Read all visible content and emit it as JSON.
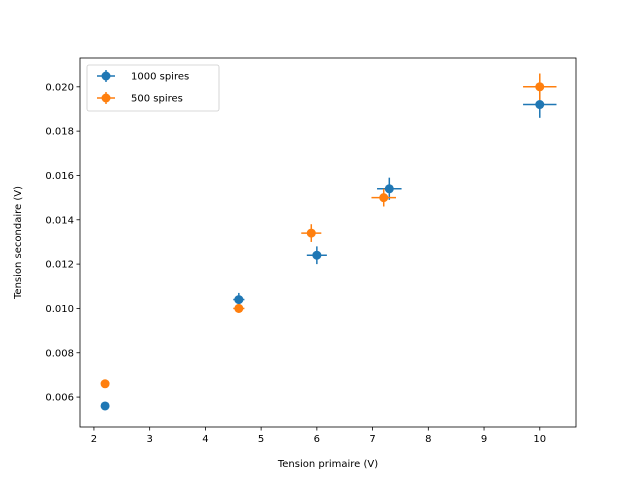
{
  "chart_data": {
    "type": "scatter",
    "title": "",
    "xlabel": "Tension primaire (V)",
    "ylabel": "Tension secondaire (V)",
    "xlim": [
      1.75,
      10.65
    ],
    "ylim": [
      0.00465,
      0.0213
    ],
    "xticks": [
      2,
      3,
      4,
      5,
      6,
      7,
      8,
      9,
      10
    ],
    "yticks": [
      0.006,
      0.008,
      0.01,
      0.012,
      0.014,
      0.016,
      0.018,
      0.02
    ],
    "grid": false,
    "legend_position": "top-left",
    "error_bars": true,
    "series": [
      {
        "name": "1000 spires",
        "color": "#1f77b4",
        "points": [
          {
            "x": 2.2,
            "y": 0.0056,
            "xerr": 0.0,
            "yerr": 0.0
          },
          {
            "x": 4.6,
            "y": 0.0104,
            "xerr": 0.1,
            "yerr": 0.0003
          },
          {
            "x": 6.0,
            "y": 0.0124,
            "xerr": 0.18,
            "yerr": 0.0004
          },
          {
            "x": 7.3,
            "y": 0.0154,
            "xerr": 0.22,
            "yerr": 0.0005
          },
          {
            "x": 10.0,
            "y": 0.0192,
            "xerr": 0.3,
            "yerr": 0.0006
          }
        ]
      },
      {
        "name": "500 spires",
        "color": "#ff7f0e",
        "points": [
          {
            "x": 2.2,
            "y": 0.0066,
            "xerr": 0.0,
            "yerr": 0.0
          },
          {
            "x": 4.6,
            "y": 0.01,
            "xerr": 0.1,
            "yerr": 0.0002
          },
          {
            "x": 5.9,
            "y": 0.0134,
            "xerr": 0.18,
            "yerr": 0.0004
          },
          {
            "x": 7.2,
            "y": 0.015,
            "xerr": 0.22,
            "yerr": 0.0004
          },
          {
            "x": 10.0,
            "y": 0.02,
            "xerr": 0.3,
            "yerr": 0.0006
          }
        ]
      }
    ]
  }
}
